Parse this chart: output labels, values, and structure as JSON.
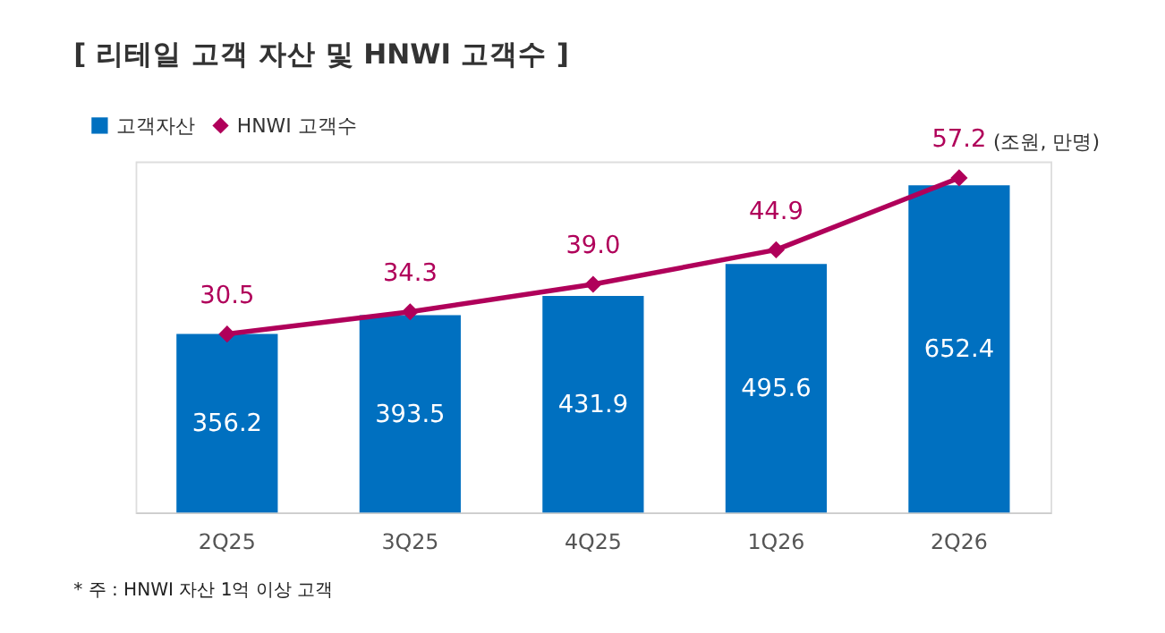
{
  "chart_data": {
    "type": "bar",
    "title": "[ 리테일 고객 자산 및 HNWI 고객수 ]",
    "categories": [
      "2Q25",
      "3Q25",
      "4Q25",
      "1Q26",
      "2Q26"
    ],
    "series": [
      {
        "name": "고객자산",
        "color": "#0070c0",
        "values": [
          356.2,
          393.5,
          431.9,
          495.6,
          652.4
        ]
      },
      {
        "name": "HNWI 고객수",
        "type": "line",
        "axis": "y2",
        "color": "#b0005a",
        "marker": "diamond",
        "values": [
          30.5,
          34.3,
          39.0,
          44.9,
          57.2
        ],
        "value_labels": [
          "30.5",
          "34.3",
          "39.0",
          "44.9",
          "57.2"
        ]
      }
    ],
    "data_labels": true,
    "legend": "top left",
    "tick_labels": "x",
    "annotations": [
      "(조원, 만명)",
      "* 주 : HNWI 자산 1억 이상 고객"
    ]
  }
}
